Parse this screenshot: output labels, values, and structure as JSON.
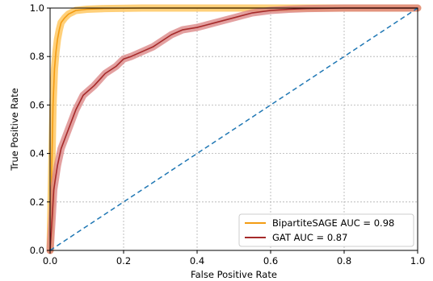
{
  "chart_data": {
    "type": "line",
    "title": "",
    "xlabel": "False Positive Rate",
    "ylabel": "True Positive Rate",
    "xlim": [
      0.0,
      1.0
    ],
    "ylim": [
      0.0,
      1.0
    ],
    "xticks": [
      "0.0",
      "0.2",
      "0.4",
      "0.6",
      "0.8",
      "1.0"
    ],
    "yticks": [
      "0.0",
      "0.2",
      "0.4",
      "0.6",
      "0.8",
      "1.0"
    ],
    "grid": true,
    "legend_position": "lower-right",
    "series": [
      {
        "name": "BipartiteSAGE AUC = 0.98",
        "color": "#f39c12",
        "band_color": "#ffc04d",
        "x": [
          0.0,
          0.004,
          0.008,
          0.012,
          0.016,
          0.02,
          0.025,
          0.03,
          0.04,
          0.05,
          0.07,
          0.1,
          0.15,
          0.25,
          0.5,
          1.0
        ],
        "y": [
          0.0,
          0.3,
          0.6,
          0.75,
          0.82,
          0.87,
          0.91,
          0.94,
          0.96,
          0.975,
          0.99,
          0.995,
          0.998,
          1.0,
          1.0,
          1.0
        ]
      },
      {
        "name": "GAT AUC = 0.87",
        "color": "#a52a2a",
        "band_color": "#d98080",
        "x": [
          0.0,
          0.005,
          0.01,
          0.02,
          0.03,
          0.05,
          0.07,
          0.09,
          0.12,
          0.15,
          0.18,
          0.2,
          0.22,
          0.25,
          0.28,
          0.3,
          0.33,
          0.36,
          0.4,
          0.45,
          0.5,
          0.55,
          0.6,
          0.65,
          0.7,
          0.8,
          0.9,
          1.0
        ],
        "y": [
          0.0,
          0.12,
          0.25,
          0.35,
          0.42,
          0.5,
          0.58,
          0.64,
          0.68,
          0.73,
          0.76,
          0.79,
          0.8,
          0.82,
          0.84,
          0.86,
          0.89,
          0.91,
          0.92,
          0.94,
          0.96,
          0.98,
          0.99,
          0.995,
          0.998,
          1.0,
          1.0,
          1.0
        ]
      },
      {
        "name": "",
        "color": "#1f77b4",
        "style": "dashed",
        "x": [
          0.0,
          1.0
        ],
        "y": [
          0.0,
          1.0
        ]
      }
    ]
  }
}
